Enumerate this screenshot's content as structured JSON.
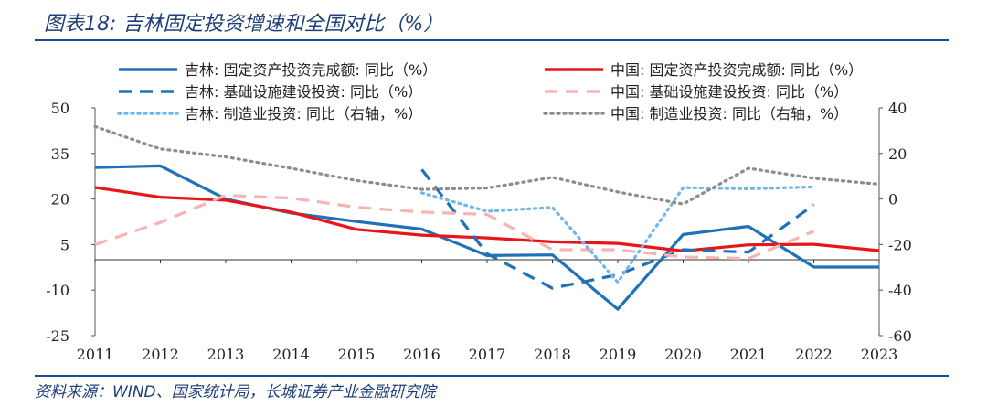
{
  "title": "图表18:  吉林固定投资增速和全国对比（%）",
  "source": "资料来源：WIND、国家统计局，长城证券产业金融研究院",
  "chart_data": {
    "type": "line",
    "x": [
      "2011",
      "2012",
      "2013",
      "2014",
      "2015",
      "2016",
      "2017",
      "2018",
      "2019",
      "2020",
      "2021",
      "2022",
      "2023"
    ],
    "y_left": {
      "ylim": [
        -25,
        50
      ],
      "ticks": [
        -25,
        -10,
        5,
        20,
        35,
        50
      ]
    },
    "y_right": {
      "ylim": [
        -60,
        40
      ],
      "ticks": [
        -60,
        -40,
        -20,
        0,
        20,
        40
      ]
    },
    "grid": false,
    "legend_position": "top",
    "series": [
      {
        "name": "吉林: 固定资产投资完成额: 同比（%）",
        "axis": "left",
        "style": "solid",
        "color": "#1f72b8",
        "values": [
          30.4,
          30.9,
          20.0,
          15.4,
          12.6,
          10.1,
          1.4,
          1.6,
          -16.3,
          8.3,
          11.0,
          -2.4,
          -2.4
        ]
      },
      {
        "name": "中国: 固定资产投资完成额: 同比（%）",
        "axis": "left",
        "style": "solid",
        "color": "#e8161b",
        "values": [
          23.8,
          20.6,
          19.6,
          15.7,
          10.0,
          8.1,
          7.2,
          5.9,
          5.4,
          2.9,
          4.9,
          5.1,
          3.0
        ]
      },
      {
        "name": "吉林: 基础设施建设投资: 同比（%）",
        "axis": "left",
        "style": "dashed",
        "color": "#1f72b8",
        "values": [
          null,
          null,
          null,
          null,
          null,
          29.7,
          2.0,
          -9.4,
          -4.9,
          3.3,
          2.5,
          18.1,
          null
        ]
      },
      {
        "name": "中国: 基础设施建设投资: 同比（%）",
        "axis": "left",
        "style": "dashed",
        "color": "#f5b5b5",
        "values": [
          5.0,
          12.3,
          21.2,
          20.3,
          17.3,
          15.7,
          14.9,
          3.3,
          3.3,
          0.9,
          0.4,
          9.4,
          null
        ]
      },
      {
        "name": "吉林: 制造业投资: 同比（右轴，%）",
        "axis": "right",
        "style": "dotted",
        "color": "#6fb6ea",
        "values": [
          null,
          null,
          null,
          null,
          null,
          2.7,
          -5.4,
          -3.7,
          -36.5,
          5.0,
          4.5,
          5.3,
          null
        ]
      },
      {
        "name": "中国: 制造业投资: 同比（右轴，%）",
        "axis": "right",
        "style": "dotted",
        "color": "#8c8c8c",
        "values": [
          31.8,
          22.0,
          18.5,
          13.5,
          8.1,
          4.2,
          4.8,
          9.5,
          3.1,
          -2.2,
          13.5,
          9.1,
          6.5
        ]
      }
    ]
  }
}
